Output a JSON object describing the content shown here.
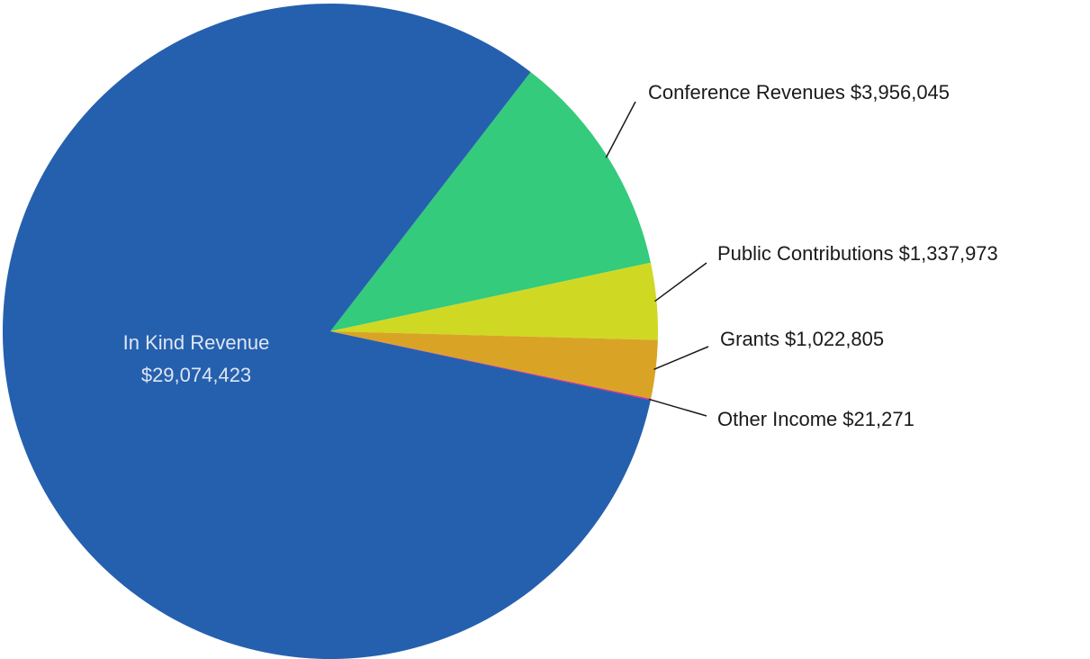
{
  "chart_data": {
    "type": "pie",
    "categories": [
      "Conference Revenues",
      "Public Contributions",
      "Grants",
      "Other Income",
      "In Kind Revenue"
    ],
    "values": [
      3956045,
      1337973,
      1022805,
      21271,
      29074423
    ],
    "value_labels": [
      "$3,956,045",
      "$1,337,973",
      "$1,022,805",
      "$21,271",
      "$29,074,423"
    ],
    "colors": [
      "#34cb7c",
      "#cfd923",
      "#d9a426",
      "#ec1b9a",
      "#2560ae"
    ]
  }
}
